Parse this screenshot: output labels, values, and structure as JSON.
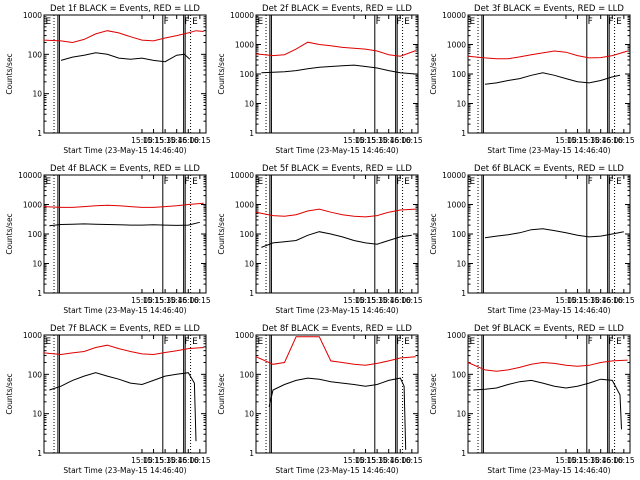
{
  "figure": {
    "background": "#ffffff",
    "events_color": "#000000",
    "lld_color": "#e00000"
  },
  "chart_data": [
    {
      "type": "line",
      "title": "Det 1f BLACK = Events, RED = LLD",
      "xlabel": "Start Time (23-May-15 14:46:40)",
      "ylabel": "Counts/sec",
      "yscale": "log",
      "ylim": [
        1,
        1000
      ],
      "xlim": [
        "12:53",
        "16:23"
      ],
      "x_ticks": [
        "15:00",
        "15:15",
        "15:30",
        "15:45",
        "16:00",
        "16:15"
      ],
      "y_ticks": [
        "1",
        "10",
        "100",
        "1000"
      ],
      "markers": [
        "E",
        "F",
        "F",
        "E"
      ],
      "series": [
        {
          "name": "Events",
          "color": "#000000",
          "x": [
            "13:15",
            "13:30",
            "13:45",
            "14:00",
            "14:15",
            "14:30",
            "14:45",
            "15:00",
            "15:15",
            "15:30",
            "15:45",
            "15:55",
            "16:02"
          ],
          "values": [
            70,
            85,
            95,
            110,
            100,
            80,
            75,
            80,
            70,
            65,
            95,
            100,
            75
          ]
        },
        {
          "name": "LLD",
          "color": "#e00000",
          "x": [
            "12:53",
            "13:15",
            "13:30",
            "13:45",
            "14:00",
            "14:15",
            "14:30",
            "14:45",
            "15:00",
            "15:15",
            "15:30",
            "15:45",
            "16:00",
            "16:10",
            "16:20"
          ],
          "values": [
            230,
            220,
            200,
            240,
            330,
            400,
            350,
            280,
            230,
            220,
            260,
            300,
            350,
            400,
            380
          ]
        }
      ]
    },
    {
      "type": "line",
      "title": "Det 2f BLACK = Events, RED = LLD",
      "xlabel": "Start Time (23-May-15 14:46:40)",
      "ylabel": "Counts/sec",
      "yscale": "log",
      "ylim": [
        1,
        10000
      ],
      "xlim": [
        "12:53",
        "16:23"
      ],
      "x_ticks": [
        "15:00",
        "15:15",
        "15:30",
        "15:45",
        "16:00",
        "16:15"
      ],
      "y_ticks": [
        "1",
        "10",
        "100",
        "1000",
        "10000"
      ],
      "markers": [
        "E",
        "F",
        "F",
        "E"
      ],
      "series": [
        {
          "name": "Events",
          "color": "#000000",
          "x": [
            "13:00",
            "13:15",
            "13:30",
            "13:45",
            "14:00",
            "14:15",
            "14:30",
            "14:45",
            "15:00",
            "15:15",
            "15:30",
            "15:45",
            "16:00",
            "16:20"
          ],
          "values": [
            110,
            115,
            120,
            130,
            150,
            170,
            180,
            190,
            200,
            180,
            160,
            130,
            110,
            100
          ]
        },
        {
          "name": "LLD",
          "color": "#e00000",
          "x": [
            "12:53",
            "13:15",
            "13:30",
            "13:45",
            "14:00",
            "14:15",
            "14:30",
            "14:45",
            "15:00",
            "15:15",
            "15:30",
            "15:45",
            "16:00",
            "16:20"
          ],
          "values": [
            480,
            420,
            450,
            700,
            1200,
            1000,
            900,
            800,
            750,
            700,
            600,
            450,
            400,
            620
          ]
        }
      ]
    },
    {
      "type": "line",
      "title": "Det 3f BLACK = Events, RED = LLD",
      "xlabel": "Start Time (23-May-15 14:46:40)",
      "ylabel": "Counts/sec",
      "yscale": "log",
      "ylim": [
        1,
        10000
      ],
      "xlim": [
        "12:53",
        "16:23"
      ],
      "x_ticks": [
        "15:00",
        "15:15",
        "15:30",
        "15:45",
        "16:00",
        "16:15"
      ],
      "y_ticks": [
        "1",
        "10",
        "100",
        "1000",
        "10000"
      ],
      "markers": [
        "E",
        "F",
        "F",
        "E"
      ],
      "series": [
        {
          "name": "Events",
          "color": "#000000",
          "x": [
            "13:15",
            "13:30",
            "13:45",
            "14:00",
            "14:15",
            "14:30",
            "14:45",
            "15:00",
            "15:15",
            "15:30",
            "15:45",
            "16:00",
            "16:10"
          ],
          "values": [
            45,
            50,
            60,
            70,
            90,
            110,
            90,
            70,
            55,
            50,
            60,
            80,
            90
          ]
        },
        {
          "name": "LLD",
          "color": "#e00000",
          "x": [
            "12:53",
            "13:15",
            "13:30",
            "13:45",
            "14:00",
            "14:15",
            "14:30",
            "14:45",
            "15:00",
            "15:15",
            "15:30",
            "15:45",
            "16:00",
            "16:20"
          ],
          "values": [
            400,
            350,
            330,
            330,
            380,
            450,
            520,
            600,
            550,
            420,
            350,
            360,
            420,
            600
          ]
        }
      ]
    },
    {
      "type": "line",
      "title": "Det 4f BLACK = Events, RED = LLD",
      "xlabel": "Start Time (23-May-15 14:46:40)",
      "ylabel": "Counts/sec",
      "yscale": "log",
      "ylim": [
        1,
        10000
      ],
      "xlim": [
        "12:53",
        "16:23"
      ],
      "x_ticks": [
        "15:00",
        "15:15",
        "15:30",
        "15:45",
        "16:00",
        "16:15"
      ],
      "y_ticks": [
        "1",
        "10",
        "100",
        "1000",
        "10000"
      ],
      "markers": [
        "E",
        "F",
        "F",
        "E"
      ],
      "series": [
        {
          "name": "Events",
          "color": "#000000",
          "x": [
            "13:00",
            "13:15",
            "13:30",
            "13:45",
            "14:00",
            "14:15",
            "14:30",
            "14:45",
            "15:00",
            "15:15",
            "15:30",
            "15:45",
            "16:00",
            "16:15"
          ],
          "values": [
            190,
            210,
            215,
            220,
            215,
            210,
            205,
            200,
            200,
            205,
            200,
            195,
            200,
            250
          ]
        },
        {
          "name": "LLD",
          "color": "#e00000",
          "x": [
            "12:53",
            "13:15",
            "13:30",
            "13:45",
            "14:00",
            "14:15",
            "14:30",
            "14:45",
            "15:00",
            "15:15",
            "15:30",
            "15:45",
            "16:00",
            "16:20"
          ],
          "values": [
            850,
            800,
            800,
            850,
            900,
            950,
            900,
            850,
            800,
            800,
            850,
            900,
            1000,
            1100
          ]
        }
      ]
    },
    {
      "type": "line",
      "title": "Det 5f BLACK = Events, RED = LLD",
      "xlabel": "Start Time (23-May-15 14:46:40)",
      "ylabel": "Counts/sec",
      "yscale": "log",
      "ylim": [
        1,
        10000
      ],
      "xlim": [
        "12:53",
        "16:23"
      ],
      "x_ticks": [
        "15:00",
        "15:15",
        "15:30",
        "15:45",
        "16:00",
        "16:15"
      ],
      "y_ticks": [
        "1",
        "10",
        "100",
        "1000",
        "10000"
      ],
      "markers": [
        "E",
        "F",
        "F",
        "E"
      ],
      "series": [
        {
          "name": "Events",
          "color": "#000000",
          "x": [
            "13:00",
            "13:15",
            "13:30",
            "13:45",
            "14:00",
            "14:15",
            "14:30",
            "14:45",
            "15:00",
            "15:15",
            "15:30",
            "15:45",
            "16:00",
            "16:15"
          ],
          "values": [
            35,
            50,
            55,
            60,
            90,
            120,
            100,
            80,
            60,
            50,
            45,
            60,
            80,
            90
          ]
        },
        {
          "name": "LLD",
          "color": "#e00000",
          "x": [
            "12:53",
            "13:15",
            "13:30",
            "13:45",
            "14:00",
            "14:15",
            "14:30",
            "14:45",
            "15:00",
            "15:15",
            "15:30",
            "15:45",
            "16:00",
            "16:20"
          ],
          "values": [
            550,
            420,
            400,
            450,
            600,
            700,
            550,
            450,
            400,
            380,
            420,
            550,
            650,
            700
          ]
        }
      ]
    },
    {
      "type": "line",
      "title": "Det 6f BLACK = Events, RED = LLD",
      "xlabel": "Start Time (23-May-15 14:46:40)",
      "ylabel": "Counts/sec",
      "yscale": "log",
      "ylim": [
        1,
        10000
      ],
      "xlim": [
        "12:53",
        "16:23"
      ],
      "x_ticks": [
        "15:00",
        "15:15",
        "15:30",
        "15:45",
        "16:00",
        "16:15"
      ],
      "y_ticks": [
        "1",
        "10",
        "100",
        "1000",
        "10000"
      ],
      "markers": [
        "E",
        "F",
        "F",
        "E"
      ],
      "series": [
        {
          "name": "Events",
          "color": "#000000",
          "x": [
            "13:15",
            "13:30",
            "13:45",
            "14:00",
            "14:15",
            "14:30",
            "14:45",
            "15:00",
            "15:15",
            "15:30",
            "15:45",
            "16:00",
            "16:15"
          ],
          "values": [
            75,
            85,
            95,
            110,
            140,
            150,
            130,
            110,
            90,
            80,
            85,
            100,
            120
          ]
        }
      ]
    },
    {
      "type": "line",
      "title": "Det 7f BLACK = Events, RED = LLD",
      "xlabel": "Start Time (23-May-15 14:46:40)",
      "ylabel": "Counts/sec",
      "yscale": "log",
      "ylim": [
        1,
        1000
      ],
      "xlim": [
        "12:53",
        "16:23"
      ],
      "x_ticks": [
        "15:00",
        "15:15",
        "15:30",
        "15:45",
        "16:00",
        "16:15"
      ],
      "y_ticks": [
        "1",
        "10",
        "100",
        "1000"
      ],
      "markers": [
        "E",
        "F",
        "F",
        "E"
      ],
      "series": [
        {
          "name": "Events",
          "color": "#000000",
          "x": [
            "13:00",
            "13:15",
            "13:30",
            "13:45",
            "14:00",
            "14:15",
            "14:30",
            "14:45",
            "15:00",
            "15:15",
            "15:30",
            "15:45",
            "16:00",
            "16:08",
            "16:10"
          ],
          "values": [
            40,
            50,
            70,
            90,
            110,
            90,
            75,
            60,
            55,
            70,
            90,
            100,
            110,
            60,
            2
          ]
        },
        {
          "name": "LLD",
          "color": "#e00000",
          "x": [
            "12:53",
            "13:15",
            "13:30",
            "13:45",
            "14:00",
            "14:15",
            "14:30",
            "14:45",
            "15:00",
            "15:15",
            "15:30",
            "15:45",
            "16:00",
            "16:20"
          ],
          "values": [
            350,
            320,
            350,
            380,
            480,
            550,
            450,
            380,
            330,
            320,
            360,
            400,
            450,
            480
          ]
        }
      ]
    },
    {
      "type": "line",
      "title": "Det 8f BLACK = Events, RED = LLD",
      "xlabel": "Start Time (23-May-15 14:46:40)",
      "ylabel": "Counts/sec",
      "yscale": "log",
      "ylim": [
        1,
        1000
      ],
      "xlim": [
        "12:53",
        "16:23"
      ],
      "x_ticks": [
        "15:00",
        "15:15",
        "15:30",
        "15:45",
        "16:00",
        "16:15"
      ],
      "y_ticks": [
        "1",
        "10",
        "100",
        "1000"
      ],
      "markers": [
        "E",
        "F",
        "F",
        "E"
      ],
      "series": [
        {
          "name": "Events",
          "color": "#000000",
          "x": [
            "13:10",
            "13:15",
            "13:30",
            "13:45",
            "14:00",
            "14:15",
            "14:30",
            "14:45",
            "15:00",
            "15:15",
            "15:30",
            "15:45",
            "16:00",
            "16:05",
            "16:07"
          ],
          "values": [
            15,
            40,
            55,
            70,
            80,
            75,
            65,
            60,
            55,
            50,
            55,
            70,
            80,
            50,
            1.2
          ]
        },
        {
          "name": "LLD",
          "color": "#e00000",
          "x": [
            "12:53",
            "13:15",
            "13:30",
            "13:45",
            "14:00",
            "14:15",
            "14:30",
            "14:45",
            "15:00",
            "15:15",
            "15:30",
            "15:45",
            "16:00",
            "16:20"
          ],
          "values": [
            280,
            180,
            200,
            900,
            900,
            900,
            220,
            200,
            180,
            170,
            190,
            220,
            260,
            280
          ]
        }
      ]
    },
    {
      "type": "line",
      "title": "Det 9f BLACK = Events, RED = LLD",
      "xlabel": "Start Time (23-May-15 14:46:40)",
      "ylabel": "Counts/sec",
      "yscale": "log",
      "ylim": [
        1,
        1000
      ],
      "xlim": [
        "12:53",
        "16:23"
      ],
      "x_ticks": [
        "15:00",
        "15:15",
        "15:30",
        "15:45",
        "16:00",
        "16:15"
      ],
      "y_ticks": [
        "1",
        "10",
        "100",
        "1000"
      ],
      "markers": [
        "E",
        "F",
        "F",
        "E"
      ],
      "series": [
        {
          "name": "Events",
          "color": "#000000",
          "x": [
            "13:00",
            "13:15",
            "13:30",
            "13:45",
            "14:00",
            "14:15",
            "14:30",
            "14:45",
            "15:00",
            "15:15",
            "15:30",
            "15:45",
            "16:00",
            "16:10",
            "16:12"
          ],
          "values": [
            40,
            42,
            45,
            55,
            65,
            70,
            60,
            50,
            45,
            50,
            60,
            75,
            70,
            30,
            4
          ]
        },
        {
          "name": "LLD",
          "color": "#e00000",
          "x": [
            "12:53",
            "13:15",
            "13:30",
            "13:45",
            "14:00",
            "14:15",
            "14:30",
            "14:45",
            "15:00",
            "15:15",
            "15:30",
            "15:45",
            "16:00",
            "16:20"
          ],
          "values": [
            200,
            130,
            120,
            130,
            150,
            180,
            200,
            190,
            170,
            160,
            170,
            200,
            220,
            230
          ]
        }
      ]
    }
  ]
}
